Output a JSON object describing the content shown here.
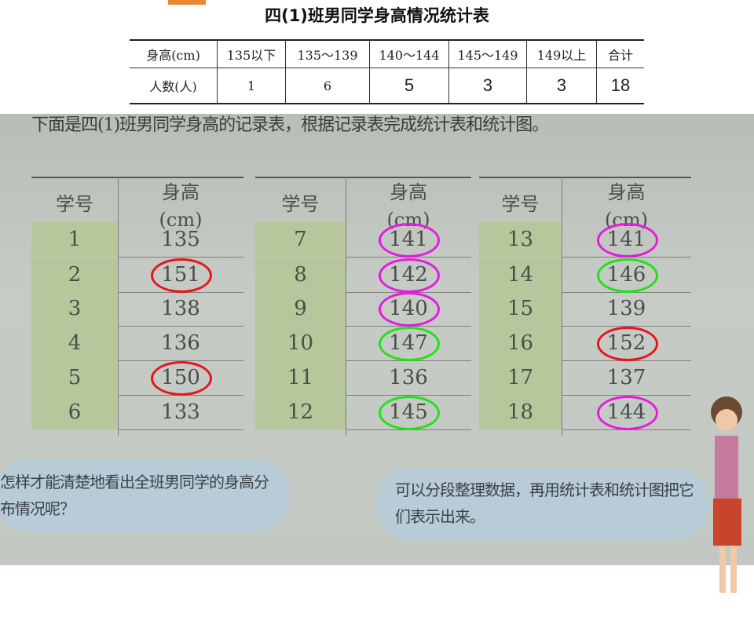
{
  "title": "四(1)班男同学身高情况统计表",
  "summary_table": {
    "header": [
      "身高(cm)",
      "135以下",
      "135～139",
      "140～144",
      "145～149",
      "149以上",
      "合计"
    ],
    "row": [
      "人数(人)",
      "1",
      "6",
      "5",
      "3",
      "3",
      "18"
    ],
    "filled_in": [
      false,
      false,
      false,
      true,
      true,
      true,
      true
    ]
  },
  "photo": {
    "intro": "下面是四(1)班男同学身高的记录表，根据记录表完成统计表和统计图。",
    "col_id": "学号",
    "col_height": "身高",
    "col_unit": "(cm)",
    "records": [
      {
        "id": "1",
        "h": "135",
        "mark": ""
      },
      {
        "id": "2",
        "h": "151",
        "mark": "red"
      },
      {
        "id": "3",
        "h": "138",
        "mark": ""
      },
      {
        "id": "4",
        "h": "136",
        "mark": ""
      },
      {
        "id": "5",
        "h": "150",
        "mark": "red"
      },
      {
        "id": "6",
        "h": "133",
        "mark": ""
      },
      {
        "id": "7",
        "h": "141",
        "mark": "magenta"
      },
      {
        "id": "8",
        "h": "142",
        "mark": "magenta"
      },
      {
        "id": "9",
        "h": "140",
        "mark": "magenta"
      },
      {
        "id": "10",
        "h": "147",
        "mark": "green"
      },
      {
        "id": "11",
        "h": "136",
        "mark": ""
      },
      {
        "id": "12",
        "h": "145",
        "mark": "green"
      },
      {
        "id": "13",
        "h": "141",
        "mark": "magenta"
      },
      {
        "id": "14",
        "h": "146",
        "mark": "green"
      },
      {
        "id": "15",
        "h": "139",
        "mark": ""
      },
      {
        "id": "16",
        "h": "152",
        "mark": "red"
      },
      {
        "id": "17",
        "h": "137",
        "mark": ""
      },
      {
        "id": "18",
        "h": "144",
        "mark": "magenta"
      }
    ],
    "bubble_left": "怎样才能清楚地看出全班男同学的身高分布情况呢？",
    "bubble_right": "可以分段整理数据，再用统计表和统计图把它们表示出来。"
  },
  "colors": {
    "red": "#e8141e",
    "magenta": "#e51be0",
    "green": "#22e01a",
    "answer": "#1d3e86"
  }
}
